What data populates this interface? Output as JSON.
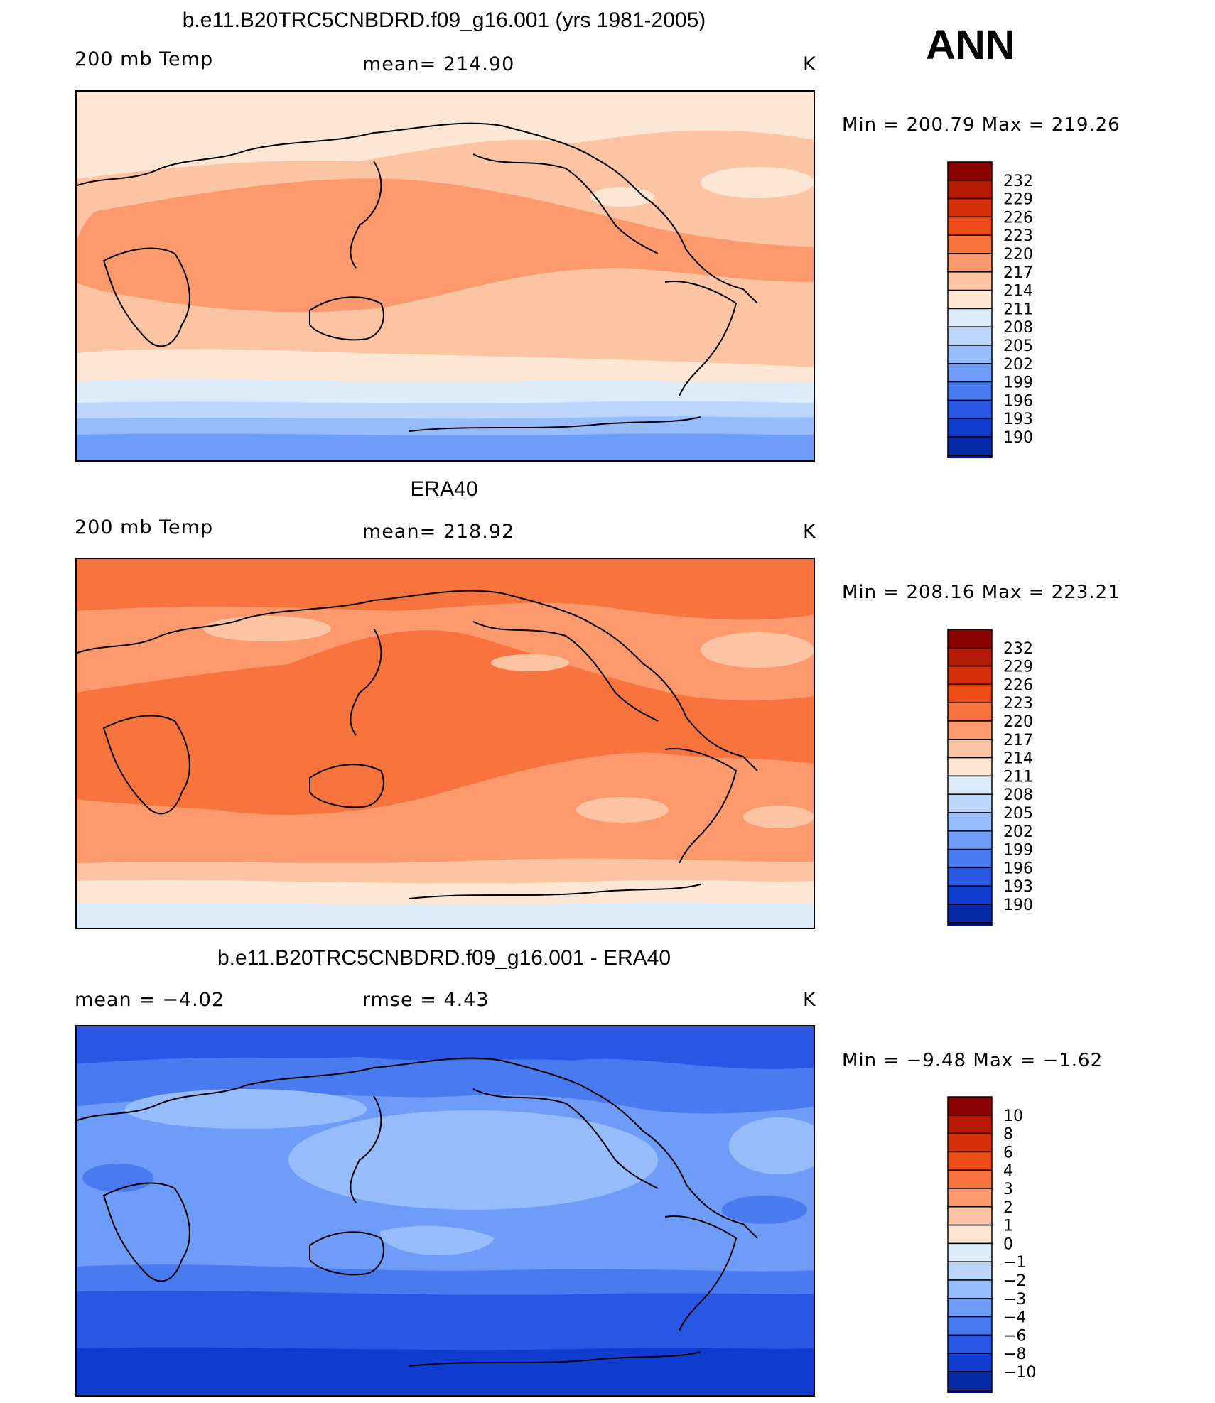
{
  "season": "ANN",
  "panels": [
    {
      "title": "b.e11.B20TRC5CNBDRD.f09_g16.001 (yrs 1981-2005)",
      "left_label": "200 mb Temp",
      "center_label": "mean= 214.90",
      "units": "K",
      "minmax": "Min = 200.79 Max = 219.26",
      "colorbar": {
        "labels": [
          "232",
          "229",
          "226",
          "223",
          "220",
          "217",
          "214",
          "211",
          "208",
          "205",
          "202",
          "199",
          "196",
          "193",
          "190"
        ],
        "colors": [
          "#8b0000",
          "#b51a04",
          "#d6300a",
          "#ef4b16",
          "#f9733f",
          "#fc9a6e",
          "#fdc4a3",
          "#fee6d4",
          "#ddecfb",
          "#bcd6fb",
          "#97bcfb",
          "#6f9cf8",
          "#4a7af0",
          "#2957e4",
          "#0f3bcf",
          "#042aa8",
          "#000c85"
        ]
      },
      "field": {
        "background": "#fee6d4",
        "bands": [
          {
            "color": "#fdc4a3",
            "desc": "subtropical band north"
          },
          {
            "color": "#fc9a6e",
            "desc": "tropics"
          },
          {
            "color": "#ddecfb",
            "desc": "southern high latitudes"
          },
          {
            "color": "#bcd6fb",
            "desc": "southern ocean"
          },
          {
            "color": "#97bcfb",
            "desc": "antarctic coast"
          },
          {
            "color": "#6f9cf8",
            "desc": "antarctica"
          }
        ]
      }
    },
    {
      "title": "ERA40",
      "left_label": "200 mb Temp",
      "center_label": "mean= 218.92",
      "units": "K",
      "minmax": "Min = 208.16 Max = 223.21",
      "colorbar": {
        "labels": [
          "232",
          "229",
          "226",
          "223",
          "220",
          "217",
          "214",
          "211",
          "208",
          "205",
          "202",
          "199",
          "196",
          "193",
          "190"
        ],
        "colors": [
          "#8b0000",
          "#b51a04",
          "#d6300a",
          "#ef4b16",
          "#f9733f",
          "#fc9a6e",
          "#fdc4a3",
          "#fee6d4",
          "#ddecfb",
          "#bcd6fb",
          "#97bcfb",
          "#6f9cf8",
          "#4a7af0",
          "#2957e4",
          "#0f3bcf",
          "#042aa8",
          "#000c85"
        ]
      },
      "field": {
        "background": "#fc9a6e",
        "bands": [
          {
            "color": "#f9733f",
            "desc": "arctic"
          },
          {
            "color": "#fc9a6e",
            "desc": "northern mid latitudes"
          },
          {
            "color": "#f9733f",
            "desc": "tropics"
          },
          {
            "color": "#fdc4a3",
            "desc": "southern mid latitudes"
          },
          {
            "color": "#fee6d4",
            "desc": "southern high latitudes"
          },
          {
            "color": "#ddecfb",
            "desc": "antarctica"
          }
        ]
      }
    },
    {
      "title": "b.e11.B20TRC5CNBDRD.f09_g16.001 - ERA40",
      "left_label": "mean =   −4.02",
      "center_label": "rmse =    4.43",
      "units": "K",
      "minmax": "Min =   −9.48 Max =   −1.62",
      "colorbar": {
        "labels": [
          "10",
          "8",
          "6",
          "4",
          "3",
          "2",
          "1",
          "0",
          "−1",
          "−2",
          "−3",
          "−4",
          "−6",
          "−8",
          "−10"
        ],
        "colors": [
          "#8b0000",
          "#b51a04",
          "#d6300a",
          "#ef4b16",
          "#f9733f",
          "#fc9a6e",
          "#fdc4a3",
          "#fee6d4",
          "#ddecfb",
          "#bcd6fb",
          "#97bcfb",
          "#6f9cf8",
          "#4a7af0",
          "#2957e4",
          "#0f3bcf",
          "#042aa8",
          "#000c85"
        ]
      },
      "field": {
        "background": "#6f9cf8",
        "bands": [
          {
            "color": "#2957e4",
            "desc": "arctic"
          },
          {
            "color": "#4a7af0",
            "desc": "northern mid latitudes"
          },
          {
            "color": "#97bcfb",
            "desc": "tropics"
          },
          {
            "color": "#4a7af0",
            "desc": "southern mid latitudes"
          },
          {
            "color": "#2957e4",
            "desc": "southern ocean"
          },
          {
            "color": "#0f3bcf",
            "desc": "antarctica"
          }
        ]
      }
    }
  ]
}
